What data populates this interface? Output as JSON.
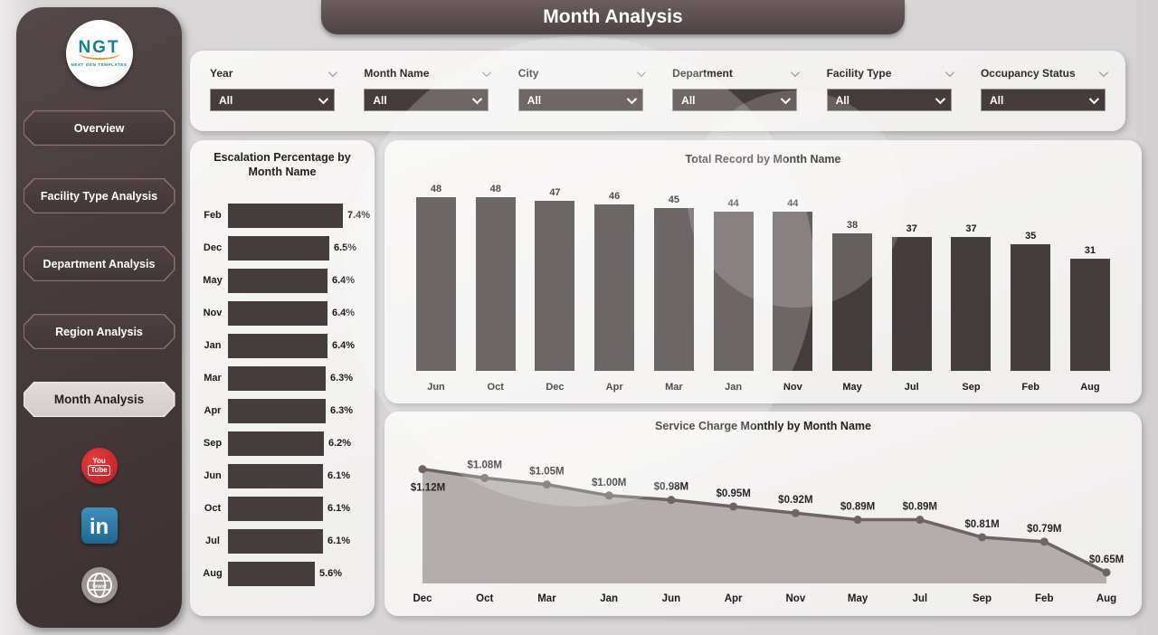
{
  "header": {
    "title": "Month Analysis"
  },
  "sidebar": {
    "logo": {
      "text": "NGT",
      "subtext": "NEXT GEN TEMPLATES"
    },
    "items": [
      {
        "label": "Overview",
        "active": false
      },
      {
        "label": "Facility Type Analysis",
        "active": false
      },
      {
        "label": "Department Analysis",
        "active": false
      },
      {
        "label": "Region Analysis",
        "active": false
      },
      {
        "label": "Month Analysis",
        "active": true
      }
    ],
    "social": [
      {
        "name": "youtube",
        "line1": "You",
        "line2": "Tube"
      },
      {
        "name": "linkedin",
        "text": "in"
      },
      {
        "name": "website",
        "text": "www"
      }
    ]
  },
  "filters": [
    {
      "label": "Year",
      "value": "All"
    },
    {
      "label": "Month Name",
      "value": "All"
    },
    {
      "label": "City",
      "value": "All"
    },
    {
      "label": "Department",
      "value": "All"
    },
    {
      "label": "Facility Type",
      "value": "All"
    },
    {
      "label": "Occupancy Status",
      "value": "All"
    }
  ],
  "colors": {
    "dark": "#473c3c",
    "bar": "#453c3c",
    "panel": "#f4f3f2",
    "page": "#d6d4d4",
    "accent_border": "#8d6f6f",
    "active_nav_bg": "#d8cfce",
    "area_fill": "#b3adac",
    "area_line": "#6f6364",
    "youtube_red": "#c61d1d",
    "linkedin_blue": "#2e7fb0"
  },
  "chart_data": [
    {
      "type": "bar",
      "orientation": "horizontal",
      "title": "Escalation Percentage by Month Name",
      "title_line1": "Escalation Percentage by",
      "title_line2": "Month Name",
      "categories": [
        "Feb",
        "Dec",
        "May",
        "Nov",
        "Jan",
        "Mar",
        "Apr",
        "Sep",
        "Jun",
        "Oct",
        "Jul",
        "Aug"
      ],
      "values": [
        7.4,
        6.5,
        6.4,
        6.4,
        6.4,
        6.3,
        6.3,
        6.2,
        6.1,
        6.1,
        6.1,
        5.6
      ],
      "labels": [
        "7.4%",
        "6.5%",
        "6.4%",
        "6.4%",
        "6.4%",
        "6.3%",
        "6.3%",
        "6.2%",
        "6.1%",
        "6.1%",
        "6.1%",
        "5.6%"
      ],
      "xlim": [
        0,
        7.4
      ],
      "grid": false,
      "legend": "none"
    },
    {
      "type": "bar",
      "orientation": "vertical",
      "title": "Total Record by Month Name",
      "categories": [
        "Jun",
        "Oct",
        "Dec",
        "Apr",
        "Mar",
        "Jan",
        "Nov",
        "May",
        "Jul",
        "Sep",
        "Feb",
        "Aug"
      ],
      "values": [
        48,
        48,
        47,
        46,
        45,
        44,
        44,
        38,
        37,
        37,
        35,
        31
      ],
      "labels": [
        "48",
        "48",
        "47",
        "46",
        "45",
        "44",
        "44",
        "38",
        "37",
        "37",
        "35",
        "31"
      ],
      "ylim": [
        0,
        48
      ],
      "grid": false,
      "legend": "none"
    },
    {
      "type": "area",
      "title": "Service Charge Monthly by Month Name",
      "categories": [
        "Dec",
        "Oct",
        "Mar",
        "Jan",
        "Jun",
        "Apr",
        "Nov",
        "May",
        "Jul",
        "Sep",
        "Feb",
        "Aug"
      ],
      "values": [
        1.12,
        1.08,
        1.05,
        1.0,
        0.98,
        0.95,
        0.92,
        0.89,
        0.89,
        0.81,
        0.79,
        0.65
      ],
      "labels": [
        "$1.12M",
        "$1.08M",
        "$1.05M",
        "$1.00M",
        "$0.98M",
        "$0.95M",
        "$0.92M",
        "$0.89M",
        "$0.89M",
        "$0.81M",
        "$0.79M",
        "$0.65M"
      ],
      "ylim": [
        0.6,
        1.15
      ],
      "grid": false,
      "legend": "none"
    }
  ]
}
